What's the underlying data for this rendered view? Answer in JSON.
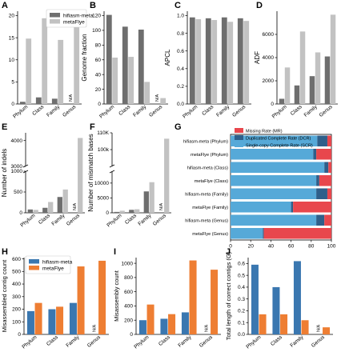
{
  "figure": {
    "colors": {
      "hifiasm_gray": "#6e6e6e",
      "metaflye_gray": "#c2c2c2",
      "hifiasm_blue": "#3a77b0",
      "metaflye_orange": "#ee7e33",
      "mr_red": "#e8474d",
      "dcr_blue": "#2f5f8a",
      "scr_blue": "#56a9d8"
    }
  },
  "chart_data": [
    {
      "panel": "A",
      "type": "bar",
      "categories": [
        "Phylum",
        "Class",
        "Family",
        "Genus"
      ],
      "series": [
        {
          "name": "hifiasm-meta",
          "values": [
            0.5,
            1.5,
            1.2,
            null
          ]
        },
        {
          "name": "metaFlye",
          "values": [
            14.8,
            19.4,
            14.5,
            18.6
          ]
        }
      ],
      "na_labels": [
        {
          "category": "Genus",
          "text": "N/A"
        }
      ],
      "ylabel": "Misassembled ratio",
      "ylim": [
        0,
        21
      ],
      "yticks": [
        0,
        5,
        10,
        15,
        20
      ]
    },
    {
      "panel": "B",
      "type": "bar",
      "categories": [
        "Phylum",
        "Class",
        "Family",
        "Genus"
      ],
      "series": [
        {
          "name": "hifiasm-meta",
          "values": [
            121,
            105,
            101,
            null
          ]
        },
        {
          "name": "metaFlye",
          "values": [
            63,
            64,
            30,
            8
          ]
        }
      ],
      "na_labels": [
        {
          "category": "Genus",
          "text": "N/A"
        }
      ],
      "ylabel": "Genome fraction",
      "ylim": [
        0,
        126
      ],
      "yticks": [
        0,
        20,
        40,
        60,
        80,
        100,
        120
      ]
    },
    {
      "panel": "C",
      "type": "bar",
      "categories": [
        "Phylum",
        "Class",
        "Family",
        "Genus"
      ],
      "series": [
        {
          "name": "hifiasm-meta",
          "values": [
            0.98,
            0.97,
            0.98,
            0.97
          ]
        },
        {
          "name": "metaFlye",
          "values": [
            0.96,
            0.95,
            0.93,
            0.94
          ]
        }
      ],
      "ylabel": "APCL",
      "ylim": [
        0,
        1.05
      ],
      "yticks": [
        0.0,
        0.2,
        0.4,
        0.6,
        0.8,
        1.0
      ],
      "ytick_labels": [
        "0.0",
        "0.2",
        "0.4",
        "0.6",
        "0.8",
        "1.0"
      ]
    },
    {
      "panel": "D",
      "type": "bar",
      "categories": [
        "Phylum",
        "Class",
        "Family",
        "Genus"
      ],
      "series": [
        {
          "name": "hifiasm-meta",
          "values": [
            450,
            1600,
            2400,
            4100
          ]
        },
        {
          "name": "metaFlye",
          "values": [
            3150,
            6250,
            4450,
            7700
          ]
        }
      ],
      "ylabel": "ADF",
      "ylim": [
        0,
        8000
      ],
      "yticks": [
        0,
        2000,
        4000,
        6000
      ]
    },
    {
      "panel": "E",
      "type": "bar",
      "categories": [
        "Phylum",
        "Class",
        "Family",
        "Genus"
      ],
      "series": [
        {
          "name": "hifiasm-meta",
          "values": [
            80,
            120,
            380,
            null
          ]
        },
        {
          "name": "metaFlye",
          "values": [
            70,
            260,
            560,
            4100
          ]
        }
      ],
      "na_labels": [
        {
          "category": "Genus",
          "text": "N/A"
        }
      ],
      "ylabel": "Number of indels",
      "ylim_lower": [
        0,
        1000
      ],
      "ylim_upper": [
        3000,
        4300
      ],
      "yticks": [
        0,
        500,
        1000,
        3000,
        4000
      ]
    },
    {
      "panel": "F",
      "type": "bar",
      "categories": [
        "Phylum",
        "Class",
        "Family",
        "Genus"
      ],
      "series": [
        {
          "name": "hifiasm-meta",
          "values": [
            300,
            1000,
            7200,
            null
          ]
        },
        {
          "name": "metaFlye",
          "values": [
            700,
            1200,
            10300,
            106500
          ]
        }
      ],
      "na_labels": [
        {
          "category": "Genus",
          "text": "N/A"
        }
      ],
      "ylabel": "Number of mismatch bases",
      "ylim_lower": [
        0,
        14000
      ],
      "ylim_upper": [
        90000,
        110000
      ],
      "yticks": [
        0,
        5000,
        10000,
        100000,
        110000
      ],
      "ytick_labels": [
        "0",
        "5000",
        "10000",
        "100k",
        "110K"
      ]
    },
    {
      "panel": "G",
      "type": "bar",
      "orientation": "horizontal",
      "stacked": true,
      "categories": [
        "hifiasm-meta (Phylum)",
        "metaFlye (Phylum)",
        "hifiasm-meta (Class)",
        "metaFlye (Class)",
        "hifiasm-meta (Family)",
        "metaFlye (Family)",
        "hifiasm-meta (Genus)",
        "metaFlye (Genus)"
      ],
      "series": [
        {
          "name": "Single-copy Complete Rate (SCR)",
          "values": [
            86,
            82,
            93,
            85,
            85,
            60,
            85,
            32
          ]
        },
        {
          "name": "Duplicated Complete Rate (DCR)",
          "values": [
            10,
            3,
            4,
            3,
            11,
            2,
            8,
            1
          ]
        },
        {
          "name": "Missing Rate (MR)",
          "values": [
            4,
            15,
            3,
            12,
            4,
            38,
            7,
            67
          ]
        }
      ],
      "legend_order": [
        "Missing Rate (MR)",
        "Duplicated Complete Rate (DCR)",
        "Single-copy Complete Rate (SCR)"
      ],
      "legend": "top",
      "xlim": [
        0,
        100
      ],
      "xticks": [
        0,
        20,
        40,
        60,
        80,
        100
      ]
    },
    {
      "panel": "H",
      "type": "bar",
      "categories": [
        "Phylum",
        "Class",
        "Family",
        "Genus"
      ],
      "series": [
        {
          "name": "hifiasm-meta",
          "values": [
            185,
            200,
            250,
            null
          ]
        },
        {
          "name": "metaFlye",
          "values": [
            250,
            220,
            540,
            585
          ]
        }
      ],
      "na_labels": [
        {
          "category": "Genus",
          "text": "N/A"
        }
      ],
      "ylabel": "Misassembled contig count",
      "ylim": [
        0,
        610
      ],
      "yticks": [
        0,
        100,
        200,
        300,
        400,
        500,
        600
      ],
      "legend": "top-left"
    },
    {
      "panel": "I",
      "type": "bar",
      "categories": [
        "Phylum",
        "Class",
        "Family",
        "Genus"
      ],
      "series": [
        {
          "name": "hifiasm-meta",
          "values": [
            200,
            220,
            310,
            null
          ]
        },
        {
          "name": "metaFlye",
          "values": [
            420,
            285,
            1040,
            910
          ]
        }
      ],
      "na_labels": [
        {
          "category": "Genus",
          "text": "N/A"
        }
      ],
      "ylabel": "Misassembly count",
      "ylim": [
        0,
        1080
      ],
      "yticks": [
        0,
        200,
        400,
        600,
        800,
        1000
      ]
    },
    {
      "panel": "J",
      "type": "bar",
      "categories": [
        "Phylum",
        "Class",
        "Family",
        "Genus"
      ],
      "series": [
        {
          "name": "hifiasm-meta",
          "values": [
            0.59,
            0.4,
            0.62,
            null
          ]
        },
        {
          "name": "metaFlye",
          "values": [
            0.17,
            0.17,
            0.12,
            0.06
          ]
        }
      ],
      "na_labels": [
        {
          "category": "Genus",
          "text": "N/A"
        }
      ],
      "ylabel": "Total length of correct contigs (G)",
      "ylim": [
        0,
        0.65
      ],
      "yticks": [
        0.0,
        0.1,
        0.2,
        0.3,
        0.4,
        0.5,
        0.6
      ],
      "ytick_labels": [
        "0.0",
        "0.1",
        "0.2",
        "0.3",
        "0.4",
        "0.5",
        "0.6"
      ]
    }
  ]
}
